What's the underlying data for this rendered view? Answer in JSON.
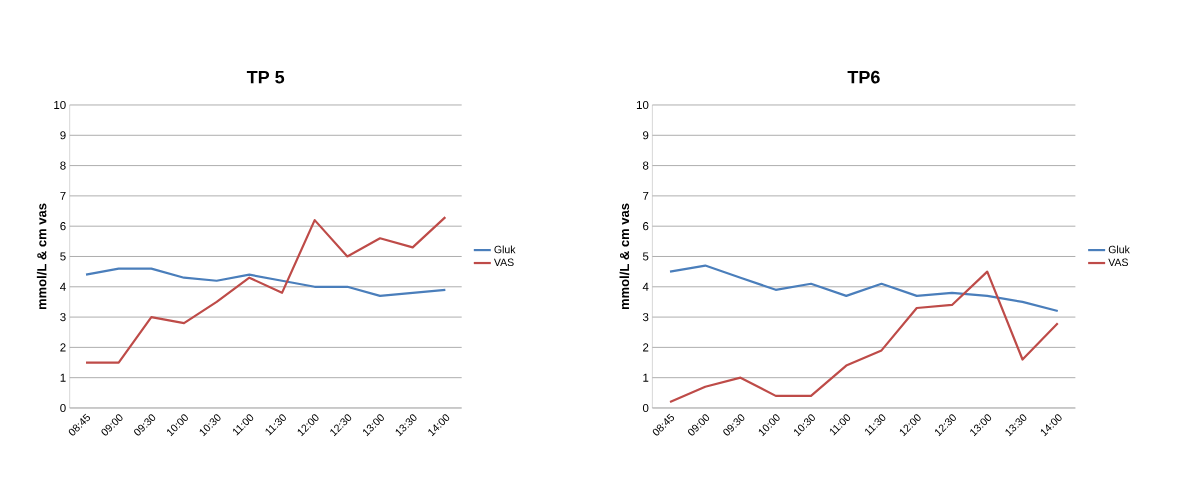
{
  "chart_data": [
    {
      "type": "line",
      "title": "TP 5",
      "ylabel": "mmol/L & cm vas",
      "categories": [
        "08:45",
        "09:00",
        "09:30",
        "10:00",
        "10:30",
        "11:00",
        "11:30",
        "12:00",
        "12:30",
        "13:00",
        "13:30",
        "14:00"
      ],
      "series": [
        {
          "name": "Gluk",
          "color": "#4a7ebb",
          "values": [
            4.4,
            4.6,
            4.6,
            4.3,
            4.2,
            4.4,
            4.2,
            4.0,
            4.0,
            3.7,
            3.8,
            3.9
          ]
        },
        {
          "name": "VAS",
          "color": "#be4b48",
          "values": [
            1.5,
            1.5,
            3.0,
            2.8,
            3.5,
            4.3,
            3.8,
            6.2,
            5.0,
            5.6,
            5.3,
            6.3
          ]
        }
      ],
      "ylim": [
        0,
        10
      ],
      "yticks": [
        0,
        1,
        2,
        3,
        4,
        5,
        6,
        7,
        8,
        9,
        10
      ],
      "grid": "y",
      "legend": "right",
      "marker": "none",
      "line_style": "solid"
    },
    {
      "type": "line",
      "title": "TP6",
      "ylabel": "mmol/L & cm vas",
      "categories": [
        "08:45",
        "09:00",
        "09:30",
        "10:00",
        "10:30",
        "11:00",
        "11:30",
        "12:00",
        "12:30",
        "13:00",
        "13:30",
        "14:00"
      ],
      "series": [
        {
          "name": "Gluk",
          "color": "#4a7ebb",
          "values": [
            4.5,
            4.7,
            4.3,
            3.9,
            4.1,
            3.7,
            4.1,
            3.7,
            3.8,
            3.7,
            3.5,
            3.2
          ]
        },
        {
          "name": "VAS",
          "color": "#be4b48",
          "values": [
            0.2,
            0.7,
            1.0,
            0.4,
            0.4,
            1.4,
            1.9,
            3.3,
            3.4,
            4.5,
            1.6,
            2.8
          ]
        }
      ],
      "ylim": [
        0,
        10
      ],
      "yticks": [
        0,
        1,
        2,
        3,
        4,
        5,
        6,
        7,
        8,
        9,
        10
      ],
      "grid": "y",
      "legend": "right",
      "marker": "none",
      "line_style": "solid"
    }
  ]
}
